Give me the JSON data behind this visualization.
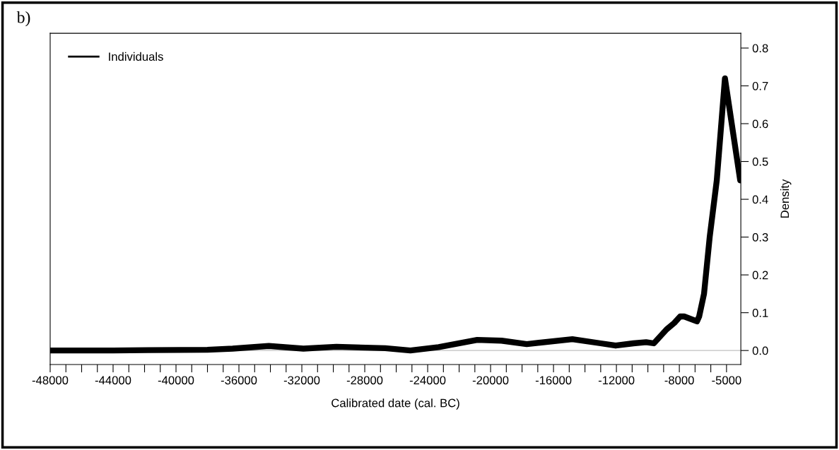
{
  "chart_data": {
    "type": "line",
    "title": "b)",
    "xlabel": "Calibrated date (cal. BC)",
    "ylabel": "Density",
    "series": [
      {
        "name": "Individuals",
        "color": "#000000",
        "x": [
          -48000,
          -44000,
          -41800,
          -38000,
          -36400,
          -34100,
          -31900,
          -29800,
          -26700,
          -25100,
          -23300,
          -20850,
          -19300,
          -17700,
          -14800,
          -13000,
          -12050,
          -10920,
          -10110,
          -9620,
          -8810,
          -8320,
          -7950,
          -7690,
          -6880,
          -6740,
          -6430,
          -6070,
          -5620,
          -5100,
          -4130
        ],
        "values": [
          0.0,
          0.0,
          0.001,
          0.002,
          0.005,
          0.012,
          0.005,
          0.01,
          0.006,
          0.0,
          0.009,
          0.028,
          0.026,
          0.017,
          0.03,
          0.019,
          0.013,
          0.019,
          0.022,
          0.019,
          0.056,
          0.073,
          0.09,
          0.09,
          0.077,
          0.09,
          0.15,
          0.3,
          0.45,
          0.72,
          0.45
        ]
      }
    ],
    "xlim": [
      -48000,
      -4090
    ],
    "ylim": [
      -0.037,
      0.839
    ],
    "xticks": [
      -48000,
      {
        "value": -47000,
        "label": null
      },
      {
        "value": -46000,
        "label": null
      },
      {
        "value": -45000,
        "label": null
      },
      -44000,
      {
        "value": -43000,
        "label": null
      },
      {
        "value": -42000,
        "label": null
      },
      {
        "value": -41000,
        "label": null
      },
      -40000,
      {
        "value": -39000,
        "label": null
      },
      {
        "value": -38000,
        "label": null
      },
      {
        "value": -37000,
        "label": null
      },
      -36000,
      {
        "value": -35000,
        "label": null
      },
      {
        "value": -34000,
        "label": null
      },
      {
        "value": -33000,
        "label": null
      },
      -32000,
      {
        "value": -31000,
        "label": null
      },
      {
        "value": -30000,
        "label": null
      },
      {
        "value": -29000,
        "label": null
      },
      -28000,
      {
        "value": -27000,
        "label": null
      },
      {
        "value": -26000,
        "label": null
      },
      {
        "value": -25000,
        "label": null
      },
      -24000,
      {
        "value": -23000,
        "label": null
      },
      {
        "value": -22000,
        "label": null
      },
      {
        "value": -21000,
        "label": null
      },
      -20000,
      {
        "value": -19000,
        "label": null
      },
      {
        "value": -18000,
        "label": null
      },
      {
        "value": -17000,
        "label": null
      },
      -16000,
      {
        "value": -15000,
        "label": null
      },
      {
        "value": -14000,
        "label": null
      },
      {
        "value": -13000,
        "label": null
      },
      -12000,
      {
        "value": -11000,
        "label": null
      },
      {
        "value": -10000,
        "label": null
      },
      {
        "value": -9000,
        "label": null
      },
      -8000,
      {
        "value": -7000,
        "label": null
      },
      {
        "value": -6000,
        "label": null
      },
      -5000
    ],
    "yticks": [
      {
        "value": 0,
        "label": "0.0"
      },
      {
        "value": 0.1,
        "label": "0.1"
      },
      {
        "value": 0.2,
        "label": "0.2"
      },
      {
        "value": 0.3,
        "label": "0.3"
      },
      {
        "value": 0.4,
        "label": "0.4"
      },
      {
        "value": 0.5,
        "label": "0.5"
      },
      {
        "value": 0.6,
        "label": "0.6"
      },
      {
        "value": 0.7,
        "label": "0.7"
      },
      {
        "value": 0.8,
        "label": "0.8"
      }
    ],
    "ref_lines": [
      {
        "axis": "y",
        "value": 0,
        "color": "#c0c0c0"
      }
    ],
    "grid": false,
    "legend": "top left",
    "marker": "none",
    "line_style": "solid"
  }
}
